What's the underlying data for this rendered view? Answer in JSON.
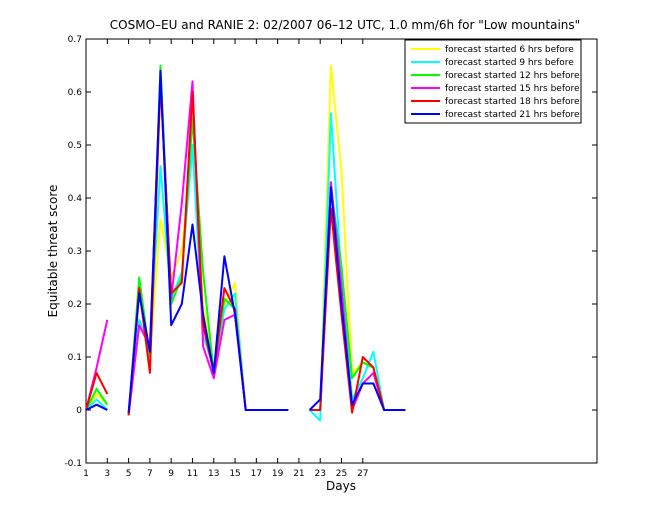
{
  "chart_data": {
    "type": "line",
    "title": "COSMO–EU and RANIE 2: 02/2007 06–12 UTC, 1.0 mm/6h for \"Low mountains\"",
    "xlabel": "Days",
    "ylabel": "Equitable threat score",
    "xlim": [
      1,
      49
    ],
    "ylim": [
      -0.1,
      0.7
    ],
    "x_ticks": [
      1,
      3,
      5,
      7,
      9,
      11,
      13,
      15,
      17,
      19,
      21,
      23,
      25,
      27
    ],
    "y_ticks": [
      -0.1,
      0,
      0.1,
      0.2,
      0.3,
      0.4,
      0.5,
      0.6,
      0.7
    ],
    "legend_position": "top-right",
    "grid": false,
    "series": [
      {
        "name": "forecast started 6 hrs before",
        "color": "#ffff00",
        "values": [
          [
            1,
            0
          ],
          [
            2,
            0.03
          ],
          [
            3,
            0.01
          ],
          null,
          [
            5,
            -0.01
          ],
          [
            6,
            0.22
          ],
          [
            7,
            0.1
          ],
          [
            8,
            0.36
          ],
          [
            9,
            0.25
          ],
          [
            10,
            0.3
          ],
          [
            11,
            0.49
          ],
          [
            12,
            0.2
          ],
          [
            13,
            0.08
          ],
          [
            14,
            0.2
          ],
          [
            15,
            0.24
          ],
          [
            16,
            0
          ],
          [
            17,
            0
          ],
          [
            18,
            0
          ],
          [
            19,
            0
          ],
          [
            20,
            0
          ],
          null,
          [
            22,
            0
          ],
          [
            23,
            0
          ],
          [
            24,
            0.65
          ],
          [
            25,
            0.45
          ],
          [
            26,
            0.07
          ],
          [
            27,
            0.09
          ],
          [
            28,
            0.08
          ],
          [
            29,
            0
          ],
          [
            30,
            0
          ],
          [
            31,
            0
          ]
        ]
      },
      {
        "name": "forecast started 9 hrs before",
        "color": "#00ffff",
        "values": [
          [
            1,
            0
          ],
          [
            2,
            0.02
          ],
          [
            3,
            0
          ],
          null,
          [
            5,
            -0.01
          ],
          [
            6,
            0.17
          ],
          [
            7,
            0.12
          ],
          [
            8,
            0.46
          ],
          [
            9,
            0.21
          ],
          [
            10,
            0.26
          ],
          [
            11,
            0.5
          ],
          [
            12,
            0.14
          ],
          [
            13,
            0.08
          ],
          [
            14,
            0.19
          ],
          [
            15,
            0.22
          ],
          [
            16,
            0
          ],
          [
            17,
            0
          ],
          [
            18,
            0
          ],
          [
            19,
            0
          ],
          [
            20,
            0
          ],
          null,
          [
            22,
            0
          ],
          [
            23,
            -0.02
          ],
          [
            24,
            0.56
          ],
          [
            25,
            0.25
          ],
          [
            26,
            0.02
          ],
          [
            27,
            0.06
          ],
          [
            28,
            0.11
          ],
          [
            29,
            0
          ],
          [
            30,
            0
          ],
          [
            31,
            0
          ]
        ]
      },
      {
        "name": "forecast started 12 hrs before",
        "color": "#00ff00",
        "values": [
          [
            1,
            0
          ],
          [
            2,
            0.04
          ],
          [
            3,
            0.01
          ],
          null,
          [
            5,
            -0.01
          ],
          [
            6,
            0.25
          ],
          [
            7,
            0.1
          ],
          [
            8,
            0.65
          ],
          [
            9,
            0.2
          ],
          [
            10,
            0.25
          ],
          [
            11,
            0.55
          ],
          [
            12,
            0.26
          ],
          [
            13,
            0.07
          ],
          [
            14,
            0.21
          ],
          [
            15,
            0.19
          ],
          [
            16,
            0
          ],
          [
            17,
            0
          ],
          [
            18,
            0
          ],
          [
            19,
            0
          ],
          [
            20,
            0
          ],
          null,
          [
            22,
            0
          ],
          [
            23,
            0
          ],
          [
            24,
            0.42
          ],
          [
            25,
            0.27
          ],
          [
            26,
            0.06
          ],
          [
            27,
            0.09
          ],
          [
            28,
            0.08
          ],
          [
            29,
            0
          ],
          [
            30,
            0
          ],
          [
            31,
            0
          ]
        ]
      },
      {
        "name": "forecast started 15 hrs before",
        "color": "#ff00ff",
        "values": [
          [
            1,
            0
          ],
          [
            2,
            0.08
          ],
          [
            3,
            0.17
          ],
          null,
          [
            5,
            -0.01
          ],
          [
            6,
            0.16
          ],
          [
            7,
            0.12
          ],
          [
            8,
            0.62
          ],
          [
            9,
            0.21
          ],
          [
            10,
            0.39
          ],
          [
            11,
            0.62
          ],
          [
            12,
            0.12
          ],
          [
            13,
            0.06
          ],
          [
            14,
            0.17
          ],
          [
            15,
            0.18
          ],
          [
            16,
            0
          ],
          [
            17,
            0
          ],
          [
            18,
            0
          ],
          [
            19,
            0
          ],
          [
            20,
            0
          ],
          null,
          [
            22,
            0
          ],
          [
            23,
            0
          ],
          [
            24,
            0.43
          ],
          [
            25,
            0.23
          ],
          [
            26,
            0
          ],
          [
            27,
            0.05
          ],
          [
            28,
            0.07
          ],
          [
            29,
            0
          ],
          [
            30,
            0
          ],
          [
            31,
            0
          ]
        ]
      },
      {
        "name": "forecast started 18 hrs before",
        "color": "#ff0000",
        "values": [
          [
            1,
            0
          ],
          [
            2,
            0.07
          ],
          [
            3,
            0.03
          ],
          null,
          [
            5,
            -0.01
          ],
          [
            6,
            0.23
          ],
          [
            7,
            0.07
          ],
          [
            8,
            0.62
          ],
          [
            9,
            0.22
          ],
          [
            10,
            0.24
          ],
          [
            11,
            0.6
          ],
          [
            12,
            0.16
          ],
          [
            13,
            0.07
          ],
          [
            14,
            0.23
          ],
          [
            15,
            0.19
          ],
          [
            16,
            0
          ],
          [
            17,
            0
          ],
          [
            18,
            0
          ],
          [
            19,
            0
          ],
          [
            20,
            0
          ],
          null,
          [
            22,
            0
          ],
          [
            23,
            0
          ],
          [
            24,
            0.38
          ],
          [
            25,
            0.18
          ],
          [
            26,
            -0.005
          ],
          [
            27,
            0.1
          ],
          [
            28,
            0.08
          ],
          [
            29,
            0
          ],
          [
            30,
            0
          ],
          [
            31,
            0
          ]
        ]
      },
      {
        "name": "forecast started 21 hrs before",
        "color": "#0000ff",
        "values": [
          [
            1,
            0
          ],
          [
            2,
            0.01
          ],
          [
            3,
            0
          ],
          null,
          [
            5,
            -0.005
          ],
          [
            6,
            0.22
          ],
          [
            7,
            0.11
          ],
          [
            8,
            0.64
          ],
          [
            9,
            0.16
          ],
          [
            10,
            0.2
          ],
          [
            11,
            0.35
          ],
          [
            12,
            0.18
          ],
          [
            13,
            0.07
          ],
          [
            14,
            0.29
          ],
          [
            15,
            0.18
          ],
          [
            16,
            0
          ],
          [
            17,
            0
          ],
          [
            18,
            0
          ],
          [
            19,
            0
          ],
          [
            20,
            0
          ],
          null,
          [
            22,
            0
          ],
          [
            23,
            0.02
          ],
          [
            24,
            0.42
          ],
          [
            25,
            0.2
          ],
          [
            26,
            0.01
          ],
          [
            27,
            0.05
          ],
          [
            28,
            0.05
          ],
          [
            29,
            0
          ],
          [
            30,
            0
          ],
          [
            31,
            0
          ]
        ]
      }
    ]
  }
}
